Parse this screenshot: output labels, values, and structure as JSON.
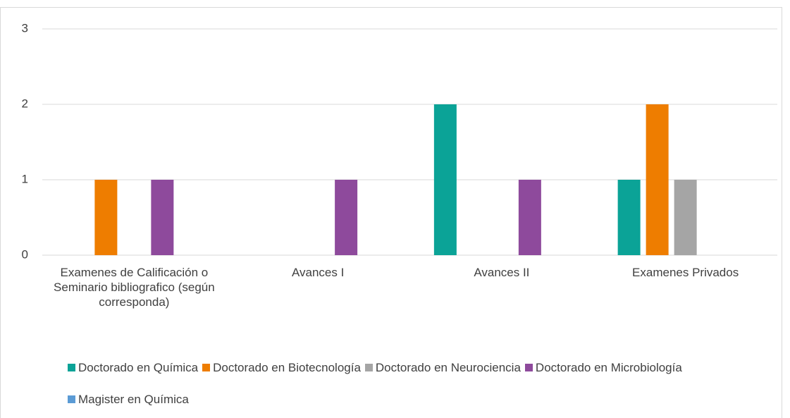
{
  "chart_data": {
    "type": "bar",
    "categories": [
      "Examenes de Calificación o Seminario bibliografico (según corresponda)",
      "Avances I",
      "Avances II",
      "Examenes Privados"
    ],
    "series": [
      {
        "name": "Doctorado en Química",
        "color": "#0ba397",
        "values": [
          0,
          0,
          2,
          1
        ]
      },
      {
        "name": "Doctorado en Biotecnología",
        "color": "#ee7d00",
        "values": [
          1,
          0,
          0,
          2
        ]
      },
      {
        "name": "Doctorado en Neurociencia",
        "color": "#a5a5a5",
        "values": [
          0,
          0,
          0,
          1
        ]
      },
      {
        "name": "Doctorado en Microbiología",
        "color": "#8e4a9c",
        "values": [
          1,
          1,
          1,
          0
        ]
      },
      {
        "name": "Magister en Química",
        "color": "#5b9bd5",
        "values": [
          0,
          0,
          0,
          0
        ]
      }
    ],
    "ylim": [
      0,
      3
    ],
    "yticks": [
      0,
      1,
      2,
      3
    ],
    "grid": true,
    "legend": "bottom"
  }
}
